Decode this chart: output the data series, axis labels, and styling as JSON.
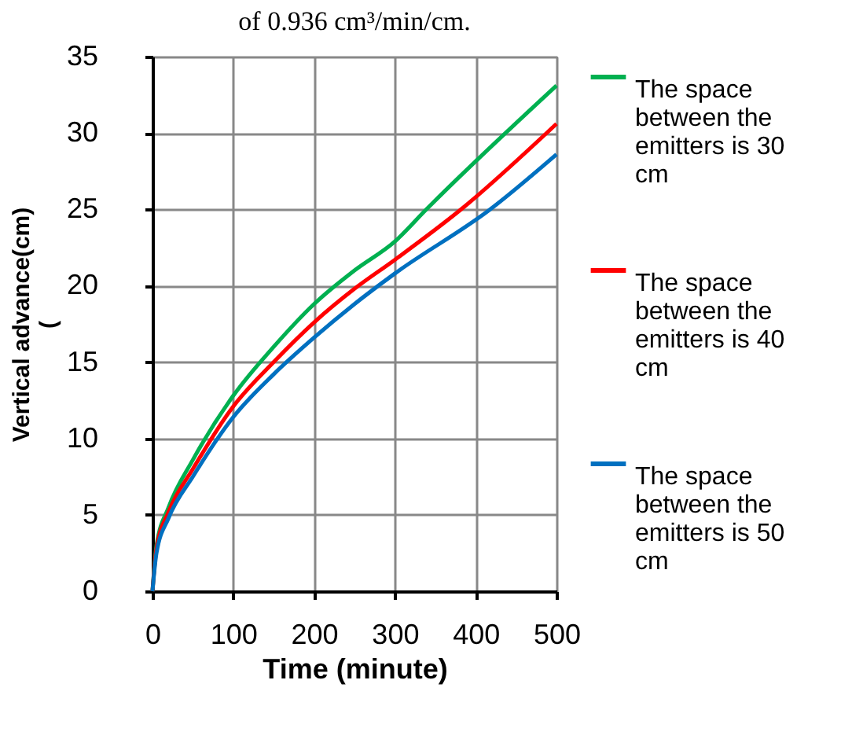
{
  "chart_data": {
    "type": "line",
    "title": "of 0.936 cm³/min/cm.",
    "xlabel": "Time (minute)",
    "ylabel": "Vertical advance(cm)\n(",
    "xlim": [
      0,
      500
    ],
    "xticks": [
      0,
      100,
      200,
      300,
      400,
      500
    ],
    "ylim": [
      0,
      35
    ],
    "yticks": [
      0,
      5,
      10,
      15,
      20,
      25,
      30,
      35
    ],
    "grid": true,
    "legend": "right",
    "marker": "none",
    "line_style": "solid",
    "series": [
      {
        "name": "The space between the emitters is 30 cm",
        "color": "#00b050",
        "x": [
          0,
          5,
          20,
          50,
          100,
          150,
          200,
          250,
          300,
          339,
          500
        ],
        "values": [
          0,
          3,
          5.5,
          8.6,
          12.8,
          16.0,
          18.8,
          21.0,
          22.9,
          25.0,
          33.1
        ]
      },
      {
        "name": "The space between the emitters is 40 cm",
        "color": "#ff0000",
        "x": [
          0,
          5,
          20,
          50,
          100,
          150,
          200,
          250,
          300,
          382,
          500
        ],
        "values": [
          0,
          2.8,
          5.2,
          8.0,
          12.1,
          15.0,
          17.6,
          19.8,
          21.7,
          25.0,
          30.6
        ]
      },
      {
        "name": "The space between the emitters is 50 cm",
        "color": "#0070c0",
        "x": [
          0,
          5,
          20,
          50,
          100,
          150,
          200,
          250,
          300,
          418,
          500
        ],
        "values": [
          0,
          2.5,
          4.8,
          7.5,
          11.4,
          14.2,
          16.6,
          18.8,
          20.8,
          25.0,
          28.6
        ]
      }
    ]
  }
}
